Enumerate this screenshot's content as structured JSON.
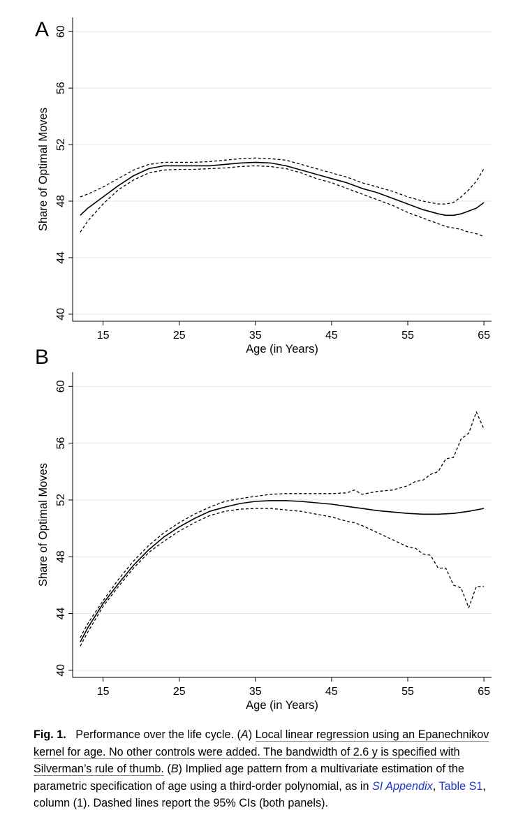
{
  "chart_data": [
    {
      "panel_label": "A",
      "type": "line",
      "xlabel": "Age (in Years)",
      "ylabel": "Share of Optimal Moves",
      "xlim": [
        11,
        66
      ],
      "ylim": [
        39.5,
        61
      ],
      "xticks": [
        15,
        25,
        35,
        45,
        55,
        65
      ],
      "yticks": [
        40,
        44,
        48,
        52,
        56,
        60
      ],
      "grid": "horizontal",
      "series": [
        {
          "role": "estimate",
          "style": "solid",
          "x": [
            12,
            13,
            15,
            17,
            19,
            21,
            23,
            25,
            27,
            29,
            31,
            33,
            35,
            37,
            39,
            41,
            43,
            45,
            47,
            49,
            51,
            53,
            55,
            57,
            59,
            60,
            61,
            62,
            63,
            64,
            65
          ],
          "y": [
            47.0,
            47.5,
            48.3,
            49.1,
            49.8,
            50.3,
            50.5,
            50.5,
            50.5,
            50.5,
            50.6,
            50.7,
            50.75,
            50.7,
            50.5,
            50.2,
            49.9,
            49.6,
            49.3,
            48.9,
            48.6,
            48.2,
            47.8,
            47.4,
            47.1,
            47.0,
            47.0,
            47.1,
            47.3,
            47.5,
            47.9
          ]
        },
        {
          "role": "upper 95% CI",
          "style": "dashed",
          "x": [
            12,
            13,
            15,
            17,
            19,
            21,
            23,
            25,
            27,
            29,
            31,
            33,
            35,
            37,
            39,
            41,
            43,
            45,
            47,
            49,
            51,
            53,
            55,
            57,
            59,
            60,
            61,
            62,
            63,
            64,
            65
          ],
          "y": [
            48.3,
            48.5,
            49.0,
            49.6,
            50.2,
            50.6,
            50.75,
            50.75,
            50.75,
            50.8,
            50.9,
            51.0,
            51.05,
            51.0,
            50.9,
            50.6,
            50.3,
            50.0,
            49.7,
            49.3,
            49.0,
            48.7,
            48.3,
            48.0,
            47.8,
            47.8,
            47.9,
            48.3,
            48.8,
            49.4,
            50.3
          ]
        },
        {
          "role": "lower 95% CI",
          "style": "dashed",
          "x": [
            12,
            13,
            15,
            17,
            19,
            21,
            23,
            25,
            27,
            29,
            31,
            33,
            35,
            37,
            39,
            41,
            43,
            45,
            47,
            49,
            51,
            53,
            55,
            57,
            59,
            60,
            61,
            62,
            63,
            64,
            65
          ],
          "y": [
            45.8,
            46.6,
            47.8,
            48.8,
            49.5,
            50.0,
            50.2,
            50.25,
            50.25,
            50.3,
            50.35,
            50.45,
            50.5,
            50.45,
            50.3,
            50.0,
            49.6,
            49.3,
            48.9,
            48.5,
            48.1,
            47.7,
            47.2,
            46.8,
            46.4,
            46.2,
            46.1,
            46.0,
            45.8,
            45.7,
            45.5
          ]
        }
      ]
    },
    {
      "panel_label": "B",
      "type": "line",
      "xlabel": "Age (in Years)",
      "ylabel": "Share of Optimal Moves",
      "xlim": [
        11,
        66
      ],
      "ylim": [
        39.5,
        61
      ],
      "xticks": [
        15,
        25,
        35,
        45,
        55,
        65
      ],
      "yticks": [
        40,
        44,
        48,
        52,
        56,
        60
      ],
      "grid": "horizontal",
      "series": [
        {
          "role": "estimate",
          "style": "solid",
          "x": [
            12,
            13,
            15,
            17,
            19,
            21,
            23,
            25,
            27,
            29,
            31,
            33,
            35,
            37,
            39,
            41,
            43,
            45,
            47,
            49,
            51,
            53,
            55,
            57,
            59,
            61,
            63,
            65
          ],
          "y": [
            42.0,
            43.0,
            44.7,
            46.1,
            47.4,
            48.5,
            49.4,
            50.1,
            50.7,
            51.2,
            51.5,
            51.75,
            51.9,
            51.95,
            51.95,
            51.9,
            51.8,
            51.7,
            51.55,
            51.4,
            51.25,
            51.15,
            51.05,
            51.0,
            51.0,
            51.05,
            51.2,
            51.4
          ]
        },
        {
          "role": "upper 95% CI",
          "style": "dashed",
          "x": [
            12,
            13,
            15,
            17,
            19,
            21,
            23,
            25,
            27,
            29,
            31,
            33,
            35,
            37,
            39,
            41,
            43,
            45,
            47,
            48,
            49,
            51,
            53,
            55,
            56,
            57,
            58,
            59,
            60,
            61,
            62,
            63,
            64,
            65
          ],
          "y": [
            42.3,
            43.3,
            44.9,
            46.4,
            47.7,
            48.8,
            49.7,
            50.4,
            51.0,
            51.5,
            51.9,
            52.1,
            52.25,
            52.4,
            52.45,
            52.45,
            52.45,
            52.45,
            52.5,
            52.7,
            52.4,
            52.6,
            52.7,
            53.0,
            53.3,
            53.4,
            53.8,
            54.0,
            54.9,
            55.0,
            56.3,
            56.7,
            58.2,
            57.0
          ]
        },
        {
          "role": "lower 95% CI",
          "style": "dashed",
          "x": [
            12,
            13,
            15,
            17,
            19,
            21,
            23,
            25,
            27,
            29,
            31,
            33,
            35,
            37,
            39,
            41,
            43,
            45,
            47,
            48,
            49,
            51,
            53,
            55,
            56,
            57,
            58,
            59,
            60,
            61,
            62,
            63,
            64,
            65
          ],
          "y": [
            41.7,
            42.7,
            44.5,
            45.9,
            47.2,
            48.3,
            49.1,
            49.8,
            50.4,
            50.9,
            51.2,
            51.35,
            51.4,
            51.4,
            51.3,
            51.2,
            51.0,
            50.8,
            50.5,
            50.4,
            50.2,
            49.7,
            49.2,
            48.7,
            48.6,
            48.2,
            48.1,
            47.2,
            47.2,
            46.0,
            45.8,
            44.4,
            45.9,
            45.9
          ]
        }
      ]
    }
  ],
  "caption": {
    "fig_label": "Fig. 1.",
    "title": "Performance over the life cycle.",
    "paren_open": "(",
    "panel_a": "A",
    "paren_close": ")",
    "text_a": "Local linear regression using an Epanechnikov kernel for age. No other controls were added. The bandwidth of 2.6 y is specified with Silverman’s rule of thumb.",
    "panel_b": "B",
    "text_b": "Implied age pattern from a multivariate estimation of the parametric specification of age using a third-order polynomial, as in",
    "link_si": "SI Appendix",
    "link_table": "Table S1",
    "text_end": ", column (1). Dashed lines report the 95% CIs (both panels)."
  },
  "colors": {
    "line": "#000000",
    "grid": "#e6e6e6",
    "link": "#1f35c8"
  }
}
